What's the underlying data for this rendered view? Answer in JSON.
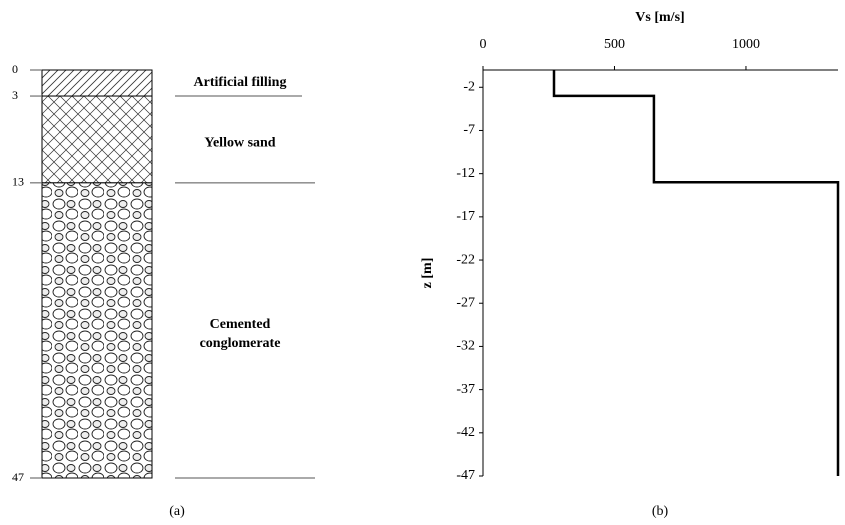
{
  "soil_column": {
    "depths": [
      0,
      3,
      13,
      47
    ],
    "layers": [
      {
        "name": [
          "Artificial filling"
        ]
      },
      {
        "name": [
          "Yellow sand"
        ]
      },
      {
        "name": [
          "Cemented",
          "conglomerate"
        ]
      }
    ],
    "caption": "(a)"
  },
  "chart_data": {
    "type": "line",
    "caption": "(b)",
    "x_label": "Vs [m/s]",
    "y_label": "z [m]",
    "x": [
      270,
      270,
      650,
      650,
      1350,
      1350
    ],
    "values": [
      0,
      -3,
      -3,
      -13,
      -13,
      -47
    ],
    "color": "#000000",
    "xlim": [
      0,
      1350
    ],
    "xticks": [
      0,
      500,
      1000
    ],
    "ylim": [
      -47,
      0
    ],
    "yticks": [
      -2,
      -7,
      -12,
      -17,
      -22,
      -27,
      -32,
      -37,
      -42,
      -47
    ]
  }
}
